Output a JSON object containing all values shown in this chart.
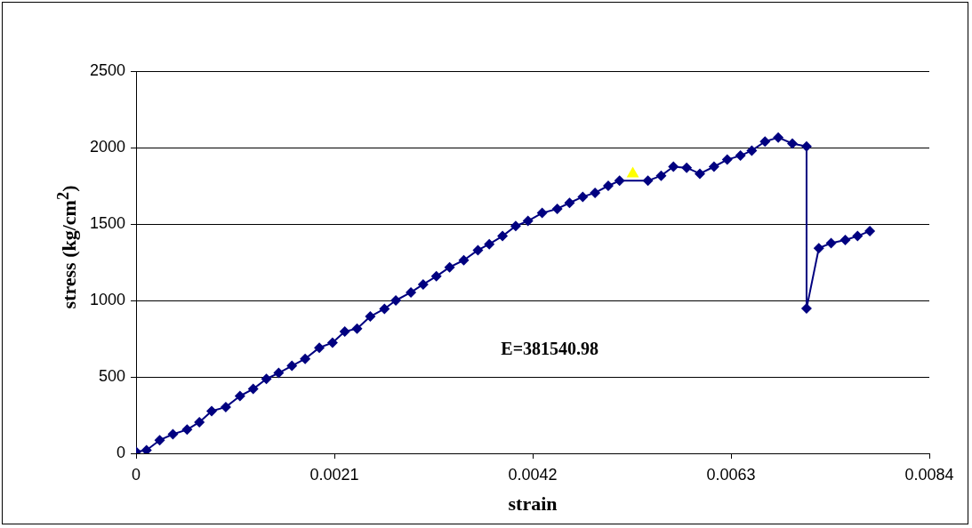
{
  "chart_data": {
    "type": "scatter",
    "xlabel": "strain",
    "ylabel": "stress (kg/cm$^{2}$)",
    "annotations": [
      "E=381540.98"
    ],
    "xlim": [
      0,
      0.0084
    ],
    "xticks": [
      0,
      0.0021,
      0.0042,
      0.0063,
      0.0084
    ],
    "ylim": [
      0,
      2500
    ],
    "yticks": [
      0,
      500,
      1000,
      1500,
      2000,
      2500
    ],
    "grid": "y",
    "legend": false,
    "line_style": "solid",
    "series": [
      {
        "type": "line",
        "marker": "diamond",
        "color": "#000080",
        "x": [
          0,
          0.00011,
          0.00025,
          0.00039,
          0.00054,
          0.00067,
          0.0008,
          0.00095,
          0.0011,
          0.00124,
          0.00138,
          0.00151,
          0.00165,
          0.00179,
          0.00194,
          0.00208,
          0.00221,
          0.00234,
          0.00248,
          0.00263,
          0.00275,
          0.00291,
          0.00304,
          0.00318,
          0.00332,
          0.00347,
          0.00362,
          0.00374,
          0.00388,
          0.00402,
          0.00415,
          0.0043,
          0.00446,
          0.00459,
          0.00473,
          0.00486,
          0.005,
          0.00512,
          0.00526,
          0.00542,
          0.00556,
          0.00569,
          0.00583,
          0.00597,
          0.00612,
          0.00626,
          0.0064,
          0.00652,
          0.00666,
          0.0068,
          0.00695,
          0.0071,
          0.0071,
          0.00723,
          0.00736,
          0.00751,
          0.00764,
          0.00777
        ],
        "values": [
          10,
          20,
          86,
          125,
          155,
          204,
          276,
          303,
          375,
          421,
          487,
          526,
          572,
          618,
          691,
          724,
          796,
          816,
          895,
          945,
          1000,
          1053,
          1105,
          1158,
          1217,
          1263,
          1329,
          1368,
          1421,
          1487,
          1520,
          1572,
          1599,
          1638,
          1678,
          1704,
          1750,
          1783,
          null,
          1783,
          1816,
          1875,
          1868,
          1829,
          1875,
          1921,
          1947,
          1980,
          2039,
          2066,
          2026,
          2007,
          947,
          1342,
          1375,
          1395,
          1421,
          1454
        ]
      },
      {
        "type": "scatter",
        "marker": "triangle",
        "color": "#ffff00",
        "x": [
          0.00526
        ],
        "values": [
          1829
        ]
      }
    ]
  }
}
